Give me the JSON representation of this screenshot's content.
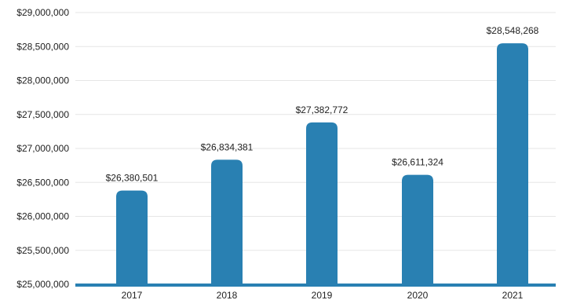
{
  "chart_data": {
    "type": "bar",
    "categories": [
      "2017",
      "2018",
      "2019",
      "2020",
      "2021"
    ],
    "values": [
      26380501,
      26834381,
      27382772,
      26611324,
      28548268
    ],
    "data_labels": [
      "$26,380,501",
      "$26,834,381",
      "$27,382,772",
      "$26,611,324",
      "$28,548,268"
    ],
    "y_ticks": [
      25000000,
      25500000,
      26000000,
      26500000,
      27000000,
      27500000,
      28000000,
      28500000,
      29000000
    ],
    "y_tick_labels": [
      "$25,000,000",
      "$25,500,000",
      "$26,000,000",
      "$26,500,000",
      "$27,000,000",
      "$27,500,000",
      "$28,000,000",
      "$28,500,000",
      "$29,000,000"
    ],
    "ylim": [
      25000000,
      29000000
    ],
    "grid": true,
    "legend": "none",
    "bar_color": "#2980b2",
    "baseline_color": "#2980b2",
    "grid_color": "#e6e6e6",
    "text_color": "#222222"
  }
}
